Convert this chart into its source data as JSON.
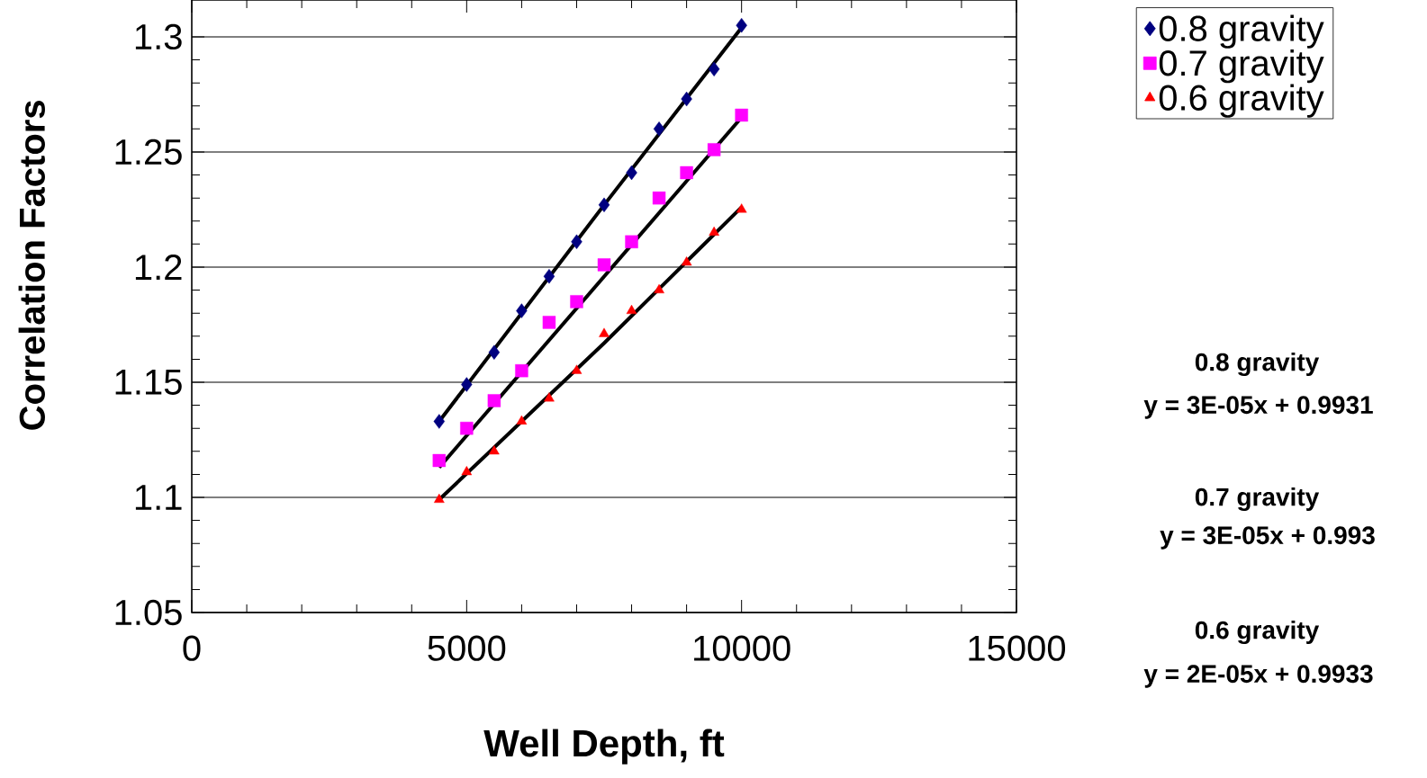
{
  "chart_data": {
    "type": "scatter",
    "xlabel": "Well Depth, ft",
    "ylabel": "Correlation Factors",
    "xlim": [
      0,
      15000
    ],
    "xticks": [
      0,
      5000,
      10000,
      15000
    ],
    "ylim": [
      1.05,
      1.316
    ],
    "yticks": [
      1.05,
      1.1,
      1.15,
      1.2,
      1.25,
      1.3
    ],
    "grid": "y",
    "legend": "top right",
    "series": [
      {
        "name": "0.8 gravity",
        "marker": "diamond",
        "color": "#000080",
        "x": [
          4500,
          5000,
          5500,
          6000,
          6500,
          7000,
          7500,
          8000,
          8500,
          9000,
          9500,
          10000
        ],
        "values": [
          1.133,
          1.149,
          1.163,
          1.181,
          1.196,
          1.211,
          1.227,
          1.241,
          1.26,
          1.273,
          1.286,
          1.305
        ]
      },
      {
        "name": "0.7 gravity",
        "marker": "square",
        "color": "#ff00ff",
        "x": [
          4500,
          5000,
          5500,
          6000,
          6500,
          7000,
          7500,
          8000,
          8500,
          9000,
          9500,
          10000
        ],
        "values": [
          1.116,
          1.13,
          1.142,
          1.155,
          1.176,
          1.185,
          1.201,
          1.211,
          1.23,
          1.241,
          1.251,
          1.266
        ]
      },
      {
        "name": "0.6 gravity",
        "marker": "triangle",
        "color": "#ff0000",
        "x": [
          4500,
          5000,
          5500,
          6000,
          6500,
          7000,
          7500,
          8000,
          8500,
          9000,
          9500,
          10000
        ],
        "values": [
          1.099,
          1.111,
          1.12,
          1.133,
          1.143,
          1.155,
          1.171,
          1.181,
          1.19,
          1.202,
          1.215,
          1.225
        ]
      },
      {
        "type": "line",
        "marker": "none",
        "color": "#000000",
        "x": [
          4500,
          7500,
          10000
        ],
        "values": [
          1.133,
          1.227,
          1.304
        ]
      },
      {
        "type": "line",
        "marker": "none",
        "color": "#000000",
        "x": [
          4500,
          10000
        ],
        "values": [
          1.113,
          1.265
        ]
      },
      {
        "type": "line",
        "marker": "none",
        "color": "#000000",
        "x": [
          4500,
          7500,
          10000
        ],
        "values": [
          1.099,
          1.167,
          1.226
        ]
      }
    ],
    "annotations": [
      "0.8 gravity",
      "y = 3E-05x + 0.9931",
      "0.7 gravity",
      "y = 3E-05x + 0.993",
      "0.6 gravity",
      "y = 2E-05x + 0.9933"
    ]
  }
}
